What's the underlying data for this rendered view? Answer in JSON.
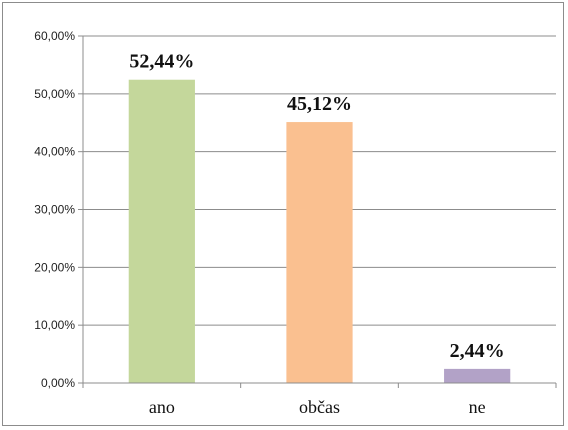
{
  "chart_data": {
    "type": "bar",
    "categories": [
      "ano",
      "občas",
      "ne"
    ],
    "values": [
      52.44,
      45.12,
      2.44
    ],
    "data_labels": [
      "52,44%",
      "45,12%",
      "2,44%"
    ],
    "y_tick_labels": [
      "0,00%",
      "10,00%",
      "20,00%",
      "30,00%",
      "40,00%",
      "50,00%",
      "60,00%"
    ],
    "y_ticks": [
      0,
      10,
      20,
      30,
      40,
      50,
      60
    ],
    "ylim": [
      0,
      60
    ],
    "grid": true,
    "legend": "none",
    "colors": [
      "#c4d79b",
      "#fac090",
      "#b2a2c7"
    ],
    "title": "",
    "xlabel": "",
    "ylabel": ""
  }
}
